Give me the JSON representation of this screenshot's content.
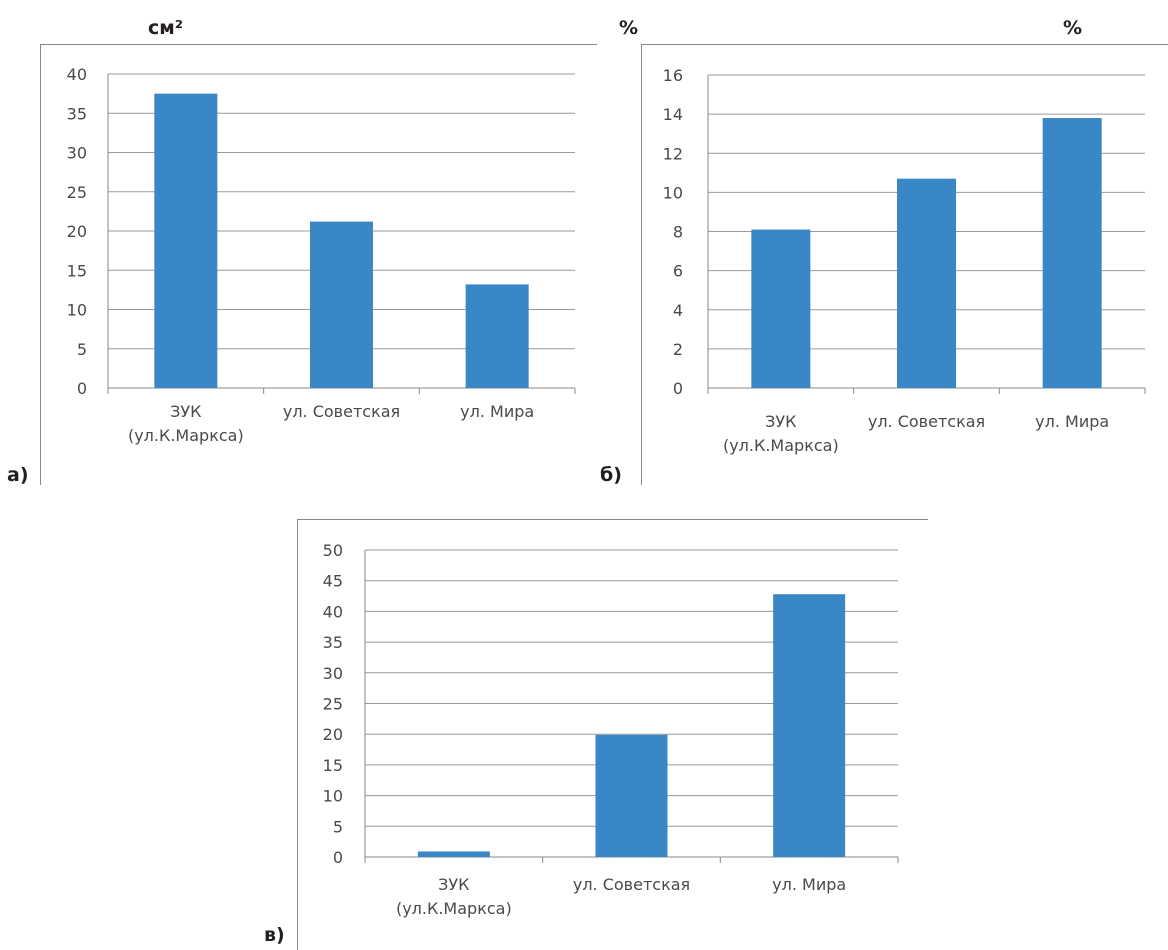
{
  "labels": {
    "unit_a": "см²",
    "unit_b_left": "%",
    "unit_b_right": "%",
    "panel_a": "а)",
    "panel_b": "б)",
    "panel_c": "в)"
  },
  "chart_data": [
    {
      "type": "bar",
      "panel": "а)",
      "unit": "см²",
      "categories": [
        [
          "ЗУК",
          "(ул.К.Маркса)"
        ],
        [
          "ул. Советская"
        ],
        [
          "ул. Мира"
        ]
      ],
      "values": [
        37.5,
        21.2,
        13.2
      ],
      "ylim": [
        0,
        40
      ],
      "yticks": [
        0,
        5,
        10,
        15,
        20,
        25,
        30,
        35,
        40
      ],
      "grid": true,
      "color": "#3a87c8"
    },
    {
      "type": "bar",
      "panel": "б)",
      "unit": "%",
      "categories": [
        [
          "ЗУК",
          "(ул.К.Маркса)"
        ],
        [
          "ул. Советская"
        ],
        [
          "ул. Мира"
        ]
      ],
      "values": [
        8.1,
        10.7,
        13.8
      ],
      "ylim": [
        0,
        16
      ],
      "yticks": [
        0,
        2,
        4,
        6,
        8,
        10,
        12,
        14,
        16
      ],
      "grid": true,
      "color": "#3a87c8"
    },
    {
      "type": "bar",
      "panel": "в)",
      "categories": [
        [
          "ЗУК",
          "(ул.К.Маркса)"
        ],
        [
          "ул. Советская"
        ],
        [
          "ул. Мира"
        ]
      ],
      "values": [
        0.9,
        19.9,
        42.8
      ],
      "ylim": [
        0,
        50
      ],
      "yticks": [
        0,
        5,
        10,
        15,
        20,
        25,
        30,
        35,
        40,
        45,
        50
      ],
      "grid": true,
      "color": "#3a87c8"
    }
  ]
}
